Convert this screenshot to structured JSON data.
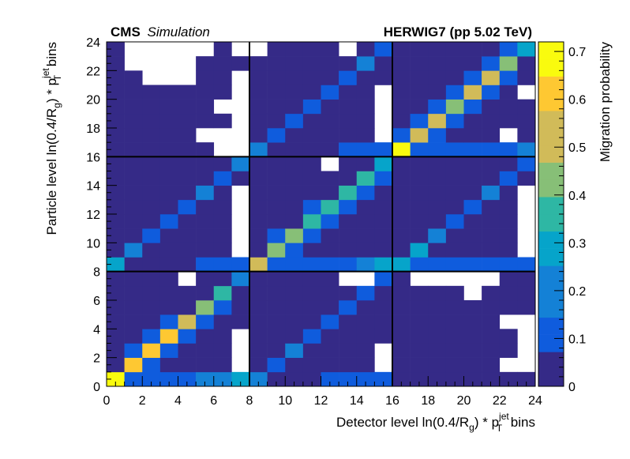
{
  "chart_data": {
    "type": "heatmap",
    "header": {
      "experiment": "CMS",
      "experiment_status": "Simulation",
      "generator": "HERWIG7 (pp 5.02 TeV)"
    },
    "xlabel": {
      "prefix": "Detector level ln(0.4/R",
      "sub1": "g",
      "middle": ") * p",
      "sub2": "T",
      "sup2": "jet",
      "suffix": " bins"
    },
    "ylabel": {
      "prefix": "Particle level ln(0.4/R",
      "sub1": "g",
      "middle": ") * p",
      "sub2": "T",
      "sup2": "jet",
      "suffix": " bins"
    },
    "zlabel": "Migration probability",
    "xlim": [
      0,
      24
    ],
    "ylim": [
      0,
      24
    ],
    "zlim": [
      0,
      0.72
    ],
    "x_ticks": [
      "0",
      "2",
      "4",
      "6",
      "8",
      "10",
      "12",
      "14",
      "16",
      "18",
      "20",
      "22",
      "24"
    ],
    "y_ticks": [
      "0",
      "2",
      "4",
      "6",
      "8",
      "10",
      "12",
      "14",
      "16",
      "18",
      "20",
      "22",
      "24"
    ],
    "z_ticks": [
      "0",
      "0.1",
      "0.2",
      "0.3",
      "0.4",
      "0.5",
      "0.6",
      "0.7"
    ],
    "block_boundaries": [
      8,
      16
    ],
    "cell_size": 1,
    "grid": false,
    "colormap": [
      "#352a87",
      "#0f5cdd",
      "#1481d6",
      "#06a4ca",
      "#2eb7a4",
      "#87bf77",
      "#d1bb59",
      "#fec832",
      "#f9fb0e"
    ],
    "empty_cells": [
      [
        1,
        23
      ],
      [
        2,
        23
      ],
      [
        3,
        23
      ],
      [
        4,
        23
      ],
      [
        5,
        23
      ],
      [
        7,
        23
      ],
      [
        8,
        23
      ],
      [
        1,
        22
      ],
      [
        2,
        22
      ],
      [
        3,
        22
      ],
      [
        4,
        22
      ],
      [
        2,
        21
      ],
      [
        3,
        21
      ],
      [
        4,
        21
      ],
      [
        7,
        21
      ],
      [
        7,
        20
      ],
      [
        6,
        19
      ],
      [
        7,
        19
      ],
      [
        7,
        18
      ],
      [
        5,
        17
      ],
      [
        6,
        17
      ],
      [
        7,
        17
      ],
      [
        6,
        16
      ],
      [
        7,
        16
      ],
      [
        13,
        23
      ],
      [
        15,
        20
      ],
      [
        15,
        19
      ],
      [
        15,
        18
      ],
      [
        15,
        17
      ],
      [
        23,
        20
      ],
      [
        22,
        17
      ],
      [
        7,
        13
      ],
      [
        7,
        12
      ],
      [
        7,
        11
      ],
      [
        7,
        10
      ],
      [
        7,
        9
      ],
      [
        12,
        15
      ],
      [
        23,
        13
      ],
      [
        23,
        12
      ],
      [
        23,
        11
      ],
      [
        23,
        10
      ],
      [
        23,
        9
      ],
      [
        4,
        7
      ],
      [
        7,
        3
      ],
      [
        7,
        2
      ],
      [
        7,
        1
      ],
      [
        13,
        7
      ],
      [
        14,
        7
      ],
      [
        15,
        1
      ],
      [
        15,
        2
      ],
      [
        17,
        7
      ],
      [
        18,
        7
      ],
      [
        19,
        7
      ],
      [
        20,
        7
      ],
      [
        21,
        7
      ],
      [
        20,
        6
      ],
      [
        22,
        4
      ],
      [
        23,
        4
      ],
      [
        23,
        3
      ],
      [
        23,
        2
      ],
      [
        22,
        1
      ],
      [
        23,
        1
      ]
    ],
    "cells": [
      {
        "x": 0,
        "y": 0,
        "value": 0.71
      },
      {
        "x": 1,
        "y": 0,
        "value": 0.1
      },
      {
        "x": 2,
        "y": 0,
        "value": 0.1
      },
      {
        "x": 3,
        "y": 0,
        "value": 0.1
      },
      {
        "x": 4,
        "y": 0,
        "value": 0.1
      },
      {
        "x": 5,
        "y": 0,
        "value": 0.2
      },
      {
        "x": 6,
        "y": 0,
        "value": 0.2
      },
      {
        "x": 7,
        "y": 0,
        "value": 0.25
      },
      {
        "x": 8,
        "y": 0,
        "value": 0.2
      },
      {
        "x": 11,
        "y": 0,
        "value": 0.05
      },
      {
        "x": 12,
        "y": 0,
        "value": 0.08
      },
      {
        "x": 13,
        "y": 0,
        "value": 0.08
      },
      {
        "x": 14,
        "y": 0,
        "value": 0.08
      },
      {
        "x": 15,
        "y": 0,
        "value": 0.08
      },
      {
        "x": 0,
        "y": 1,
        "value": 0.05
      },
      {
        "x": 1,
        "y": 1,
        "value": 0.62
      },
      {
        "x": 2,
        "y": 1,
        "value": 0.08
      },
      {
        "x": 9,
        "y": 1,
        "value": 0.15
      },
      {
        "x": 1,
        "y": 2,
        "value": 0.08
      },
      {
        "x": 2,
        "y": 2,
        "value": 0.6
      },
      {
        "x": 3,
        "y": 2,
        "value": 0.08
      },
      {
        "x": 10,
        "y": 2,
        "value": 0.18
      },
      {
        "x": 2,
        "y": 3,
        "value": 0.08
      },
      {
        "x": 3,
        "y": 3,
        "value": 0.62
      },
      {
        "x": 4,
        "y": 3,
        "value": 0.08
      },
      {
        "x": 11,
        "y": 3,
        "value": 0.15
      },
      {
        "x": 3,
        "y": 4,
        "value": 0.08
      },
      {
        "x": 4,
        "y": 4,
        "value": 0.55
      },
      {
        "x": 5,
        "y": 4,
        "value": 0.1
      },
      {
        "x": 12,
        "y": 4,
        "value": 0.15
      },
      {
        "x": 5,
        "y": 5,
        "value": 0.45
      },
      {
        "x": 6,
        "y": 5,
        "value": 0.15
      },
      {
        "x": 13,
        "y": 5,
        "value": 0.15
      },
      {
        "x": 6,
        "y": 6,
        "value": 0.35
      },
      {
        "x": 14,
        "y": 6,
        "value": 0.15
      },
      {
        "x": 7,
        "y": 7,
        "value": 0.18
      },
      {
        "x": 15,
        "y": 7,
        "value": 0.1
      },
      {
        "x": 0,
        "y": 8,
        "value": 0.25
      },
      {
        "x": 5,
        "y": 8,
        "value": 0.08
      },
      {
        "x": 6,
        "y": 8,
        "value": 0.12
      },
      {
        "x": 7,
        "y": 8,
        "value": 0.12
      },
      {
        "x": 8,
        "y": 8,
        "value": 0.5
      },
      {
        "x": 9,
        "y": 8,
        "value": 0.08
      },
      {
        "x": 10,
        "y": 8,
        "value": 0.08
      },
      {
        "x": 11,
        "y": 8,
        "value": 0.12
      },
      {
        "x": 12,
        "y": 8,
        "value": 0.12
      },
      {
        "x": 13,
        "y": 8,
        "value": 0.15
      },
      {
        "x": 14,
        "y": 8,
        "value": 0.22
      },
      {
        "x": 15,
        "y": 8,
        "value": 0.25
      },
      {
        "x": 16,
        "y": 8,
        "value": 0.3
      },
      {
        "x": 17,
        "y": 8,
        "value": 0.08
      },
      {
        "x": 18,
        "y": 8,
        "value": 0.08
      },
      {
        "x": 19,
        "y": 8,
        "value": 0.08
      },
      {
        "x": 20,
        "y": 8,
        "value": 0.08
      },
      {
        "x": 21,
        "y": 8,
        "value": 0.08
      },
      {
        "x": 22,
        "y": 8,
        "value": 0.08
      },
      {
        "x": 23,
        "y": 8,
        "value": 0.12
      },
      {
        "x": 1,
        "y": 9,
        "value": 0.18
      },
      {
        "x": 9,
        "y": 9,
        "value": 0.45
      },
      {
        "x": 10,
        "y": 9,
        "value": 0.08
      },
      {
        "x": 17,
        "y": 9,
        "value": 0.25
      },
      {
        "x": 2,
        "y": 10,
        "value": 0.15
      },
      {
        "x": 9,
        "y": 10,
        "value": 0.08
      },
      {
        "x": 10,
        "y": 10,
        "value": 0.45
      },
      {
        "x": 11,
        "y": 10,
        "value": 0.08
      },
      {
        "x": 18,
        "y": 10,
        "value": 0.18
      },
      {
        "x": 3,
        "y": 11,
        "value": 0.15
      },
      {
        "x": 11,
        "y": 11,
        "value": 0.38
      },
      {
        "x": 12,
        "y": 11,
        "value": 0.08
      },
      {
        "x": 19,
        "y": 11,
        "value": 0.15
      },
      {
        "x": 4,
        "y": 12,
        "value": 0.15
      },
      {
        "x": 11,
        "y": 12,
        "value": 0.08
      },
      {
        "x": 12,
        "y": 12,
        "value": 0.35
      },
      {
        "x": 13,
        "y": 12,
        "value": 0.08
      },
      {
        "x": 20,
        "y": 12,
        "value": 0.15
      },
      {
        "x": 5,
        "y": 13,
        "value": 0.18
      },
      {
        "x": 13,
        "y": 13,
        "value": 0.35
      },
      {
        "x": 14,
        "y": 13,
        "value": 0.08
      },
      {
        "x": 21,
        "y": 13,
        "value": 0.18
      },
      {
        "x": 6,
        "y": 14,
        "value": 0.15
      },
      {
        "x": 14,
        "y": 14,
        "value": 0.32
      },
      {
        "x": 15,
        "y": 14,
        "value": 0.08
      },
      {
        "x": 22,
        "y": 14,
        "value": 0.08
      },
      {
        "x": 7,
        "y": 15,
        "value": 0.2
      },
      {
        "x": 15,
        "y": 15,
        "value": 0.28
      },
      {
        "x": 23,
        "y": 15,
        "value": 0.1
      },
      {
        "x": 8,
        "y": 16,
        "value": 0.2
      },
      {
        "x": 13,
        "y": 16,
        "value": 0.08
      },
      {
        "x": 14,
        "y": 16,
        "value": 0.1
      },
      {
        "x": 15,
        "y": 16,
        "value": 0.12
      },
      {
        "x": 16,
        "y": 16,
        "value": 0.68
      },
      {
        "x": 17,
        "y": 16,
        "value": 0.1
      },
      {
        "x": 18,
        "y": 16,
        "value": 0.1
      },
      {
        "x": 19,
        "y": 16,
        "value": 0.1
      },
      {
        "x": 20,
        "y": 16,
        "value": 0.1
      },
      {
        "x": 21,
        "y": 16,
        "value": 0.12
      },
      {
        "x": 22,
        "y": 16,
        "value": 0.15
      },
      {
        "x": 23,
        "y": 16,
        "value": 0.22
      },
      {
        "x": 9,
        "y": 17,
        "value": 0.15
      },
      {
        "x": 16,
        "y": 17,
        "value": 0.08
      },
      {
        "x": 17,
        "y": 17,
        "value": 0.52
      },
      {
        "x": 18,
        "y": 17,
        "value": 0.08
      },
      {
        "x": 10,
        "y": 18,
        "value": 0.15
      },
      {
        "x": 17,
        "y": 18,
        "value": 0.08
      },
      {
        "x": 18,
        "y": 18,
        "value": 0.48
      },
      {
        "x": 19,
        "y": 18,
        "value": 0.1
      },
      {
        "x": 11,
        "y": 19,
        "value": 0.15
      },
      {
        "x": 18,
        "y": 19,
        "value": 0.1
      },
      {
        "x": 19,
        "y": 19,
        "value": 0.45
      },
      {
        "x": 20,
        "y": 19,
        "value": 0.1
      },
      {
        "x": 12,
        "y": 20,
        "value": 0.15
      },
      {
        "x": 19,
        "y": 20,
        "value": 0.1
      },
      {
        "x": 20,
        "y": 20,
        "value": 0.52
      },
      {
        "x": 21,
        "y": 20,
        "value": 0.1
      },
      {
        "x": 13,
        "y": 21,
        "value": 0.15
      },
      {
        "x": 20,
        "y": 21,
        "value": 0.1
      },
      {
        "x": 21,
        "y": 21,
        "value": 0.48
      },
      {
        "x": 22,
        "y": 21,
        "value": 0.1
      },
      {
        "x": 14,
        "y": 22,
        "value": 0.18
      },
      {
        "x": 21,
        "y": 22,
        "value": 0.08
      },
      {
        "x": 22,
        "y": 22,
        "value": 0.45
      },
      {
        "x": 15,
        "y": 23,
        "value": 0.1
      },
      {
        "x": 22,
        "y": 23,
        "value": 0.08
      },
      {
        "x": 23,
        "y": 23,
        "value": 0.3
      }
    ],
    "default_value": 0.0
  }
}
